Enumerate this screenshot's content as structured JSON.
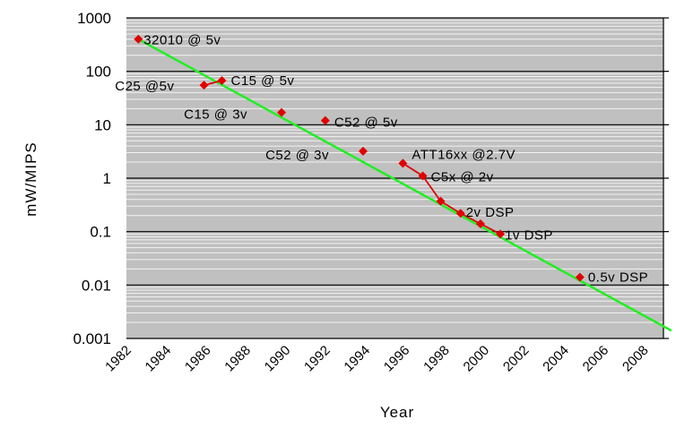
{
  "chart_data": {
    "type": "scatter",
    "title": "",
    "xlabel": "Year",
    "ylabel": "mW/MIPS",
    "xlim": [
      1982,
      2009
    ],
    "ylim": [
      0.001,
      1000
    ],
    "yscale": "log",
    "grid": true,
    "legend": "none",
    "x_ticks": [
      "1982",
      "1984",
      "1986",
      "1988",
      "1990",
      "1992",
      "1994",
      "1996",
      "1998",
      "2000",
      "2002",
      "2004",
      "2006",
      "2008"
    ],
    "y_ticks": [
      "1000",
      "100",
      "10",
      "1",
      "0.1",
      "0.01",
      "0.001"
    ],
    "series": [
      {
        "color": "#e00000",
        "points": [
          {
            "x": 1982.6,
            "y": 400,
            "label": "32010 @ 5v"
          },
          {
            "x": 1985.9,
            "y": 55,
            "label": "C25 @5v"
          },
          {
            "x": 1986.8,
            "y": 67,
            "label": "C15 @ 5v"
          },
          {
            "x": 1989.8,
            "y": 17,
            "label": "C15 @ 3v"
          },
          {
            "x": 1992.0,
            "y": 12,
            "label": "C52 @ 5v"
          },
          {
            "x": 1993.9,
            "y": 3.2,
            "label": "C52 @ 3v"
          },
          {
            "x": 1995.9,
            "y": 1.9,
            "label": "ATT16xx @2.7V"
          },
          {
            "x": 1996.9,
            "y": 1.1,
            "label": "C5x @ 2v"
          },
          {
            "x": 1997.8,
            "y": 0.37,
            "label": ""
          },
          {
            "x": 1998.8,
            "y": 0.22,
            "label": "2v DSP"
          },
          {
            "x": 1999.8,
            "y": 0.14,
            "label": ""
          },
          {
            "x": 2000.8,
            "y": 0.09,
            "label": "1v DSP"
          },
          {
            "x": 2004.8,
            "y": 0.014,
            "label": "0.5v DSP"
          }
        ]
      },
      {
        "type": "line",
        "color": "#22ee22",
        "x": [
          1982.6,
          2009.4
        ],
        "y": [
          400,
          0.0014
        ]
      }
    ]
  }
}
